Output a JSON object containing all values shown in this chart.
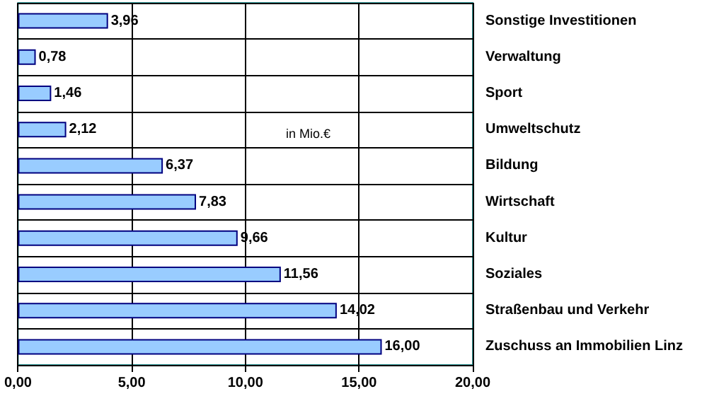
{
  "chart_data": {
    "type": "bar",
    "orientation": "horizontal",
    "categories": [
      "Sonstige Investitionen",
      "Verwaltung",
      "Sport",
      "Umweltschutz",
      "Bildung",
      "Wirtschaft",
      "Kultur",
      "Soziales",
      "Straßenbau und Verkehr",
      "Zuschuss an Immobilien Linz"
    ],
    "values": [
      3.96,
      0.78,
      1.46,
      2.12,
      6.37,
      7.83,
      9.66,
      11.56,
      14.02,
      16.0
    ],
    "value_labels": [
      "3,96",
      "0,78",
      "1,46",
      "2,12",
      "6,37",
      "7,83",
      "9,66",
      "11,56",
      "14,02",
      "16,00"
    ],
    "color": "#99ccff",
    "xlim": [
      0,
      20
    ],
    "xticks": [
      {
        "value": 0,
        "label": "0,00"
      },
      {
        "value": 5,
        "label": "5,00"
      },
      {
        "value": 10,
        "label": "10,00"
      },
      {
        "value": 15,
        "label": "15,00"
      },
      {
        "value": 20,
        "label": "20,00"
      }
    ],
    "annotations": [
      "in Mio.€"
    ],
    "grid": true
  }
}
